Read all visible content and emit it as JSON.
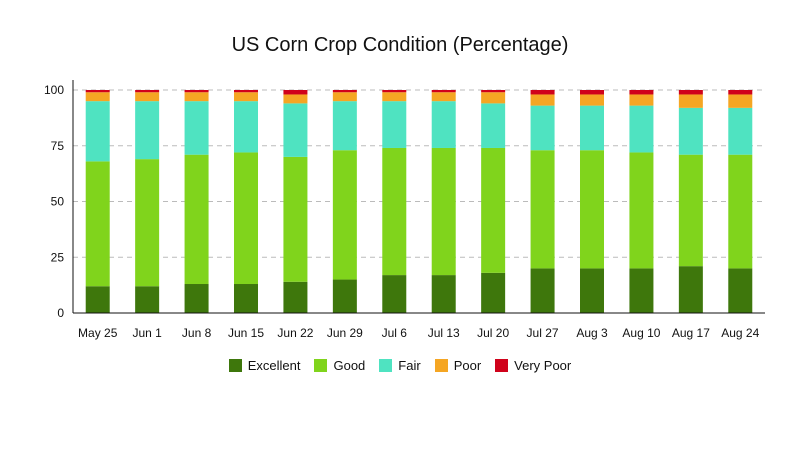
{
  "chart_data": {
    "type": "bar",
    "stacked": true,
    "title": "US Corn Crop Condition (Percentage)",
    "xlabel": "",
    "ylabel": "",
    "ylim": [
      0,
      100
    ],
    "yticks": [
      0,
      25,
      50,
      75,
      100
    ],
    "grid": "horizontal dashed",
    "legend_position": "bottom",
    "categories": [
      "May 25",
      "Jun 1",
      "Jun 8",
      "Jun 15",
      "Jun 22",
      "Jun 29",
      "Jul 6",
      "Jul 13",
      "Jul 20",
      "Jul 27",
      "Aug 3",
      "Aug 10",
      "Aug 17",
      "Aug 24"
    ],
    "series": [
      {
        "name": "Excellent",
        "color": "#3e770c",
        "values": [
          12,
          12,
          13,
          13,
          14,
          15,
          17,
          17,
          18,
          20,
          20,
          20,
          21,
          20
        ]
      },
      {
        "name": "Good",
        "color": "#80d41c",
        "values": [
          56,
          57,
          58,
          59,
          56,
          58,
          57,
          57,
          56,
          53,
          53,
          52,
          50,
          51
        ]
      },
      {
        "name": "Fair",
        "color": "#4fe3c1",
        "values": [
          27,
          26,
          24,
          23,
          24,
          22,
          21,
          21,
          20,
          20,
          20,
          21,
          21,
          21
        ]
      },
      {
        "name": "Poor",
        "color": "#f5a623",
        "values": [
          4,
          4,
          4,
          4,
          4,
          4,
          4,
          4,
          5,
          5,
          5,
          5,
          6,
          6
        ]
      },
      {
        "name": "Very Poor",
        "color": "#d0021b",
        "values": [
          1,
          1,
          1,
          1,
          2,
          1,
          1,
          1,
          1,
          2,
          2,
          2,
          2,
          2
        ]
      }
    ]
  }
}
